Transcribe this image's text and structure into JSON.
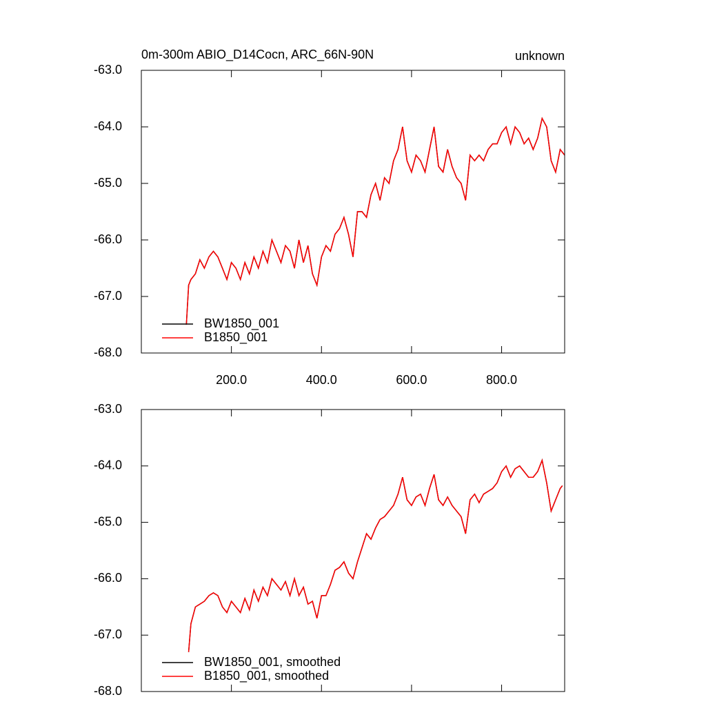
{
  "chart_data": [
    {
      "type": "line",
      "title": "0m-300m ABIO_D14Cocn, ARC_66N-90N",
      "right_title": "unknown",
      "x": [
        100,
        105,
        110,
        120,
        130,
        140,
        150,
        160,
        170,
        180,
        190,
        200,
        210,
        220,
        230,
        240,
        250,
        260,
        270,
        280,
        290,
        300,
        310,
        320,
        330,
        340,
        350,
        360,
        370,
        380,
        390,
        400,
        410,
        420,
        430,
        440,
        450,
        460,
        470,
        480,
        490,
        500,
        510,
        520,
        530,
        540,
        550,
        560,
        570,
        580,
        590,
        600,
        610,
        620,
        630,
        640,
        650,
        660,
        670,
        680,
        690,
        700,
        710,
        720,
        730,
        740,
        750,
        760,
        770,
        780,
        790,
        800,
        810,
        820,
        830,
        840,
        850,
        860,
        870,
        880,
        890,
        900,
        910,
        920,
        930,
        940
      ],
      "series": [
        {
          "name": "BW1850_001",
          "color": "#000000",
          "values": [
            -67.5,
            -66.8,
            -66.7,
            -66.6,
            -66.35,
            -66.5,
            -66.3,
            -66.2,
            -66.3,
            -66.5,
            -66.7,
            -66.4,
            -66.5,
            -66.7,
            -66.4,
            -66.6,
            -66.3,
            -66.5,
            -66.2,
            -66.4,
            -66.0,
            -66.2,
            -66.4,
            -66.1,
            -66.2,
            -66.5,
            -66.0,
            -66.4,
            -66.1,
            -66.6,
            -66.8,
            -66.3,
            -66.1,
            -66.2,
            -65.9,
            -65.8,
            -65.6,
            -65.9,
            -66.3,
            -65.5,
            -65.5,
            -65.6,
            -65.2,
            -65.0,
            -65.3,
            -64.9,
            -65.0,
            -64.6,
            -64.4,
            -64.0,
            -64.6,
            -64.8,
            -64.5,
            -64.6,
            -64.8,
            -64.4,
            -64.0,
            -64.7,
            -64.8,
            -64.4,
            -64.7,
            -64.9,
            -65.0,
            -65.3,
            -64.5,
            -64.6,
            -64.5,
            -64.6,
            -64.4,
            -64.3,
            -64.3,
            -64.1,
            -64.0,
            -64.3,
            -64.0,
            -64.1,
            -64.3,
            -64.2,
            -64.4,
            -64.2,
            -63.85,
            -64.0,
            -64.6,
            -64.8,
            -64.4,
            -64.5
          ]
        },
        {
          "name": "B1850_001",
          "color": "#ff0000",
          "values": [
            -67.5,
            -66.8,
            -66.7,
            -66.6,
            -66.35,
            -66.5,
            -66.3,
            -66.2,
            -66.3,
            -66.5,
            -66.7,
            -66.4,
            -66.5,
            -66.7,
            -66.4,
            -66.6,
            -66.3,
            -66.5,
            -66.2,
            -66.4,
            -66.0,
            -66.2,
            -66.4,
            -66.1,
            -66.2,
            -66.5,
            -66.0,
            -66.4,
            -66.1,
            -66.6,
            -66.8,
            -66.3,
            -66.1,
            -66.2,
            -65.9,
            -65.8,
            -65.6,
            -65.9,
            -66.3,
            -65.5,
            -65.5,
            -65.6,
            -65.2,
            -65.0,
            -65.3,
            -64.9,
            -65.0,
            -64.6,
            -64.4,
            -64.0,
            -64.6,
            -64.8,
            -64.5,
            -64.6,
            -64.8,
            -64.4,
            -64.0,
            -64.7,
            -64.8,
            -64.4,
            -64.7,
            -64.9,
            -65.0,
            -65.3,
            -64.5,
            -64.6,
            -64.5,
            -64.6,
            -64.4,
            -64.3,
            -64.3,
            -64.1,
            -64.0,
            -64.3,
            -64.0,
            -64.1,
            -64.3,
            -64.2,
            -64.4,
            -64.2,
            -63.85,
            -64.0,
            -64.6,
            -64.8,
            -64.4,
            -64.5
          ]
        }
      ],
      "xlim": [
        0,
        940
      ],
      "ylim": [
        -68,
        -63
      ],
      "xticks": [
        {
          "value": 200,
          "label": "200.0"
        },
        {
          "value": 400,
          "label": "400.0"
        },
        {
          "value": 600,
          "label": "600.0"
        },
        {
          "value": 800,
          "label": "800.0"
        }
      ],
      "yticks": [
        {
          "value": -68,
          "label": "-68.0"
        },
        {
          "value": -67,
          "label": "-67.0"
        },
        {
          "value": -66,
          "label": "-66.0"
        },
        {
          "value": -65,
          "label": "-65.0"
        },
        {
          "value": -64,
          "label": "-64.0"
        },
        {
          "value": -63,
          "label": "-63.0"
        }
      ],
      "show_xtick_labels": true,
      "legend": "lower left"
    },
    {
      "type": "line",
      "x": [
        105,
        110,
        120,
        130,
        140,
        150,
        160,
        170,
        180,
        190,
        200,
        210,
        220,
        230,
        240,
        250,
        260,
        270,
        280,
        290,
        300,
        310,
        320,
        330,
        340,
        350,
        360,
        370,
        380,
        390,
        400,
        410,
        420,
        430,
        440,
        450,
        460,
        470,
        480,
        490,
        500,
        510,
        520,
        530,
        540,
        550,
        560,
        570,
        580,
        590,
        600,
        610,
        620,
        630,
        640,
        650,
        660,
        670,
        680,
        690,
        700,
        710,
        720,
        730,
        740,
        750,
        760,
        770,
        780,
        790,
        800,
        810,
        820,
        830,
        840,
        850,
        860,
        870,
        880,
        890,
        900,
        910,
        920,
        930,
        935
      ],
      "series": [
        {
          "name": "BW1850_001, smoothed",
          "color": "#000000",
          "values": [
            -67.3,
            -66.8,
            -66.5,
            -66.45,
            -66.4,
            -66.3,
            -66.25,
            -66.3,
            -66.5,
            -66.6,
            -66.4,
            -66.5,
            -66.6,
            -66.35,
            -66.55,
            -66.2,
            -66.4,
            -66.15,
            -66.3,
            -66.0,
            -66.1,
            -66.2,
            -66.05,
            -66.3,
            -66.0,
            -66.3,
            -66.15,
            -66.45,
            -66.4,
            -66.7,
            -66.3,
            -66.3,
            -66.1,
            -65.85,
            -65.8,
            -65.7,
            -65.9,
            -66.0,
            -65.7,
            -65.45,
            -65.2,
            -65.3,
            -65.1,
            -64.95,
            -64.9,
            -64.8,
            -64.7,
            -64.5,
            -64.2,
            -64.6,
            -64.7,
            -64.55,
            -64.5,
            -64.7,
            -64.4,
            -64.15,
            -64.6,
            -64.7,
            -64.55,
            -64.7,
            -64.8,
            -64.9,
            -65.2,
            -64.6,
            -64.5,
            -64.65,
            -64.5,
            -64.45,
            -64.4,
            -64.3,
            -64.1,
            -64.0,
            -64.2,
            -64.05,
            -64.0,
            -64.1,
            -64.2,
            -64.2,
            -64.1,
            -63.9,
            -64.3,
            -64.8,
            -64.6,
            -64.4,
            -64.35
          ]
        },
        {
          "name": "B1850_001, smoothed",
          "color": "#ff0000",
          "values": [
            -67.3,
            -66.8,
            -66.5,
            -66.45,
            -66.4,
            -66.3,
            -66.25,
            -66.3,
            -66.5,
            -66.6,
            -66.4,
            -66.5,
            -66.6,
            -66.35,
            -66.55,
            -66.2,
            -66.4,
            -66.15,
            -66.3,
            -66.0,
            -66.1,
            -66.2,
            -66.05,
            -66.3,
            -66.0,
            -66.3,
            -66.15,
            -66.45,
            -66.4,
            -66.7,
            -66.3,
            -66.3,
            -66.1,
            -65.85,
            -65.8,
            -65.7,
            -65.9,
            -66.0,
            -65.7,
            -65.45,
            -65.2,
            -65.3,
            -65.1,
            -64.95,
            -64.9,
            -64.8,
            -64.7,
            -64.5,
            -64.2,
            -64.6,
            -64.7,
            -64.55,
            -64.5,
            -64.7,
            -64.4,
            -64.15,
            -64.6,
            -64.7,
            -64.55,
            -64.7,
            -64.8,
            -64.9,
            -65.2,
            -64.6,
            -64.5,
            -64.65,
            -64.5,
            -64.45,
            -64.4,
            -64.3,
            -64.1,
            -64.0,
            -64.2,
            -64.05,
            -64.0,
            -64.1,
            -64.2,
            -64.2,
            -64.1,
            -63.9,
            -64.3,
            -64.8,
            -64.6,
            -64.4,
            -64.35
          ]
        }
      ],
      "xlim": [
        0,
        940
      ],
      "ylim": [
        -68,
        -63
      ],
      "xticks": [
        200,
        400,
        600,
        800
      ],
      "yticks": [
        {
          "value": -68,
          "label": "-68.0"
        },
        {
          "value": -67,
          "label": "-67.0"
        },
        {
          "value": -66,
          "label": "-66.0"
        },
        {
          "value": -65,
          "label": "-65.0"
        },
        {
          "value": -64,
          "label": "-64.0"
        },
        {
          "value": -63,
          "label": "-63.0"
        }
      ],
      "show_xtick_labels": false,
      "legend": "lower left"
    }
  ]
}
